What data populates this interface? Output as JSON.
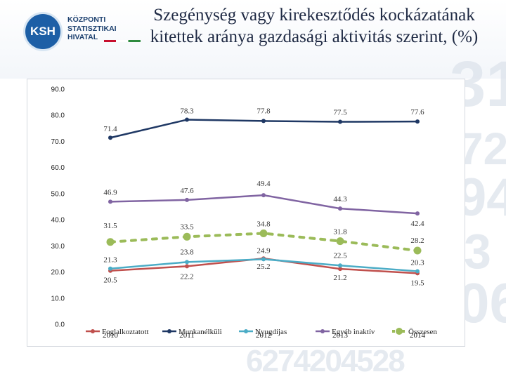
{
  "logo": {
    "abbr": "KSH",
    "line1": "KÖZPONTI",
    "line2": "STATISZTIKAI",
    "line3": "HIVATAL"
  },
  "title_line1": "Szegénység vagy kirekesztődés kockázatának",
  "title_line2": "kitettek aránya gazdasági aktivitás szerint, (%)",
  "chart_data": {
    "type": "line",
    "title": "Szegénység vagy kirekesztődés kockázatának kitettek aránya gazdasági aktivitás szerint, (%)",
    "categories": [
      "2010",
      "2011",
      "2012",
      "2013",
      "2014"
    ],
    "ylim": [
      0,
      90
    ],
    "yticks": [
      "0.0",
      "10.0",
      "20.0",
      "30.0",
      "40.0",
      "50.0",
      "60.0",
      "70.0",
      "80.0",
      "90.0"
    ],
    "grid": false,
    "legend_position": "bottom",
    "series": [
      {
        "name": "Foglalkoztatott",
        "color": "#c0504d",
        "values": [
          20.5,
          22.2,
          25.2,
          21.2,
          19.5
        ],
        "labels": [
          "20.5",
          "22.2",
          "25.2",
          "21.2",
          "19.5"
        ]
      },
      {
        "name": "Munkanélküli",
        "color": "#1f3864",
        "values": [
          71.4,
          78.3,
          77.8,
          77.5,
          77.6
        ],
        "labels": [
          "71.4",
          "78.3",
          "77.8",
          "77.5",
          "77.6"
        ]
      },
      {
        "name": "Nyugdíjas",
        "color": "#4bacc6",
        "values": [
          21.3,
          23.8,
          24.9,
          22.5,
          20.3
        ],
        "labels": [
          "21.3",
          "23.8",
          "24.9",
          "22.5",
          "20.3"
        ]
      },
      {
        "name": "Egyéb inaktív",
        "color": "#8064a2",
        "values": [
          46.9,
          47.6,
          49.4,
          44.3,
          42.4
        ],
        "labels": [
          "46.9",
          "47.6",
          "49.4",
          "44.3",
          "42.4"
        ]
      },
      {
        "name": "Összesen",
        "color": "#9bbb59",
        "values": [
          31.5,
          33.5,
          34.8,
          31.8,
          28.2
        ],
        "labels": [
          "31.5",
          "33.5",
          "34.8",
          "31.8",
          "28.2"
        ]
      }
    ]
  },
  "background_digits": [
    "31",
    "72",
    "94",
    "3",
    "06",
    "6274204528"
  ]
}
